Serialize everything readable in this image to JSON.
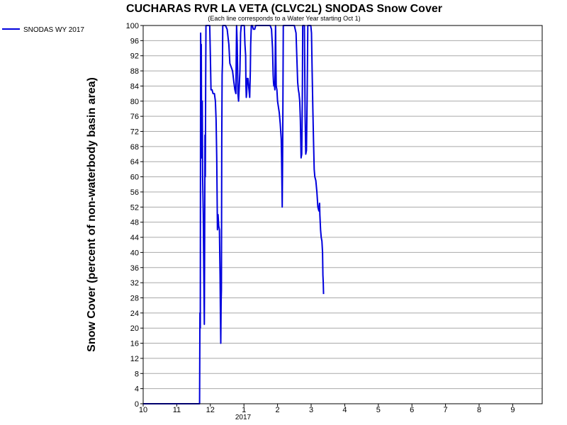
{
  "chart_data": {
    "type": "line",
    "title": "CUCHARAS RVR LA VETA (CLVC2L) SNODAS Snow Cover",
    "subtitle": "(Each line corresponds to a Water Year starting Oct 1)",
    "ylabel": "Snow Cover (percent of non-waterbody basin area)",
    "xlabel": "",
    "ylim": [
      0,
      100
    ],
    "y_ticks": [
      0,
      4,
      8,
      12,
      16,
      20,
      24,
      28,
      32,
      36,
      40,
      44,
      48,
      52,
      56,
      60,
      64,
      68,
      72,
      76,
      80,
      84,
      88,
      92,
      96,
      100
    ],
    "xlim": [
      0,
      12
    ],
    "x_ticks": [
      {
        "label": "10",
        "x": 0
      },
      {
        "label": "11",
        "x": 1
      },
      {
        "label": "12",
        "x": 2
      },
      {
        "label": "1",
        "x": 3
      },
      {
        "label": "2",
        "x": 4
      },
      {
        "label": "3",
        "x": 5
      },
      {
        "label": "4",
        "x": 6
      },
      {
        "label": "5",
        "x": 7
      },
      {
        "label": "6",
        "x": 8
      },
      {
        "label": "7",
        "x": 9
      },
      {
        "label": "8",
        "x": 10
      },
      {
        "label": "9",
        "x": 11
      }
    ],
    "year_label": "2017",
    "grid": true,
    "legend_position": "top-left",
    "series": [
      {
        "name": "SNODAS WY 2017",
        "color": "#0000dd",
        "points": [
          [
            0.0,
            0
          ],
          [
            1.68,
            0
          ],
          [
            1.69,
            24
          ],
          [
            1.7,
            20
          ],
          [
            1.71,
            98
          ],
          [
            1.72,
            88
          ],
          [
            1.73,
            95
          ],
          [
            1.74,
            65
          ],
          [
            1.75,
            75
          ],
          [
            1.76,
            80
          ],
          [
            1.77,
            60
          ],
          [
            1.79,
            50
          ],
          [
            1.8,
            40
          ],
          [
            1.81,
            30
          ],
          [
            1.82,
            21
          ],
          [
            1.83,
            40
          ],
          [
            1.84,
            71
          ],
          [
            1.85,
            60
          ],
          [
            1.86,
            85
          ],
          [
            1.87,
            100
          ],
          [
            1.88,
            100
          ],
          [
            1.9,
            100
          ],
          [
            1.93,
            100
          ],
          [
            1.96,
            100
          ],
          [
            1.98,
            100
          ],
          [
            2.0,
            92
          ],
          [
            2.02,
            83
          ],
          [
            2.05,
            83
          ],
          [
            2.08,
            82
          ],
          [
            2.12,
            82
          ],
          [
            2.15,
            80
          ],
          [
            2.17,
            75
          ],
          [
            2.19,
            65
          ],
          [
            2.21,
            46
          ],
          [
            2.22,
            50
          ],
          [
            2.23,
            50
          ],
          [
            2.25,
            47
          ],
          [
            2.27,
            46
          ],
          [
            2.29,
            34
          ],
          [
            2.3,
            24
          ],
          [
            2.31,
            16
          ],
          [
            2.32,
            27
          ],
          [
            2.33,
            30
          ],
          [
            2.34,
            70
          ],
          [
            2.35,
            87
          ],
          [
            2.36,
            90
          ],
          [
            2.37,
            100
          ],
          [
            2.4,
            100
          ],
          [
            2.45,
            100
          ],
          [
            2.5,
            99
          ],
          [
            2.55,
            95
          ],
          [
            2.58,
            90
          ],
          [
            2.62,
            89
          ],
          [
            2.66,
            88
          ],
          [
            2.7,
            85
          ],
          [
            2.73,
            83
          ],
          [
            2.76,
            82
          ],
          [
            2.78,
            100
          ],
          [
            2.8,
            95
          ],
          [
            2.82,
            82
          ],
          [
            2.84,
            80
          ],
          [
            2.86,
            84
          ],
          [
            2.88,
            88
          ],
          [
            2.9,
            98
          ],
          [
            2.92,
            100
          ],
          [
            2.95,
            100
          ],
          [
            2.97,
            100
          ],
          [
            2.99,
            100
          ],
          [
            3.01,
            100
          ],
          [
            3.03,
            95
          ],
          [
            3.05,
            92
          ],
          [
            3.06,
            84
          ],
          [
            3.07,
            81
          ],
          [
            3.08,
            82
          ],
          [
            3.1,
            86
          ],
          [
            3.12,
            86
          ],
          [
            3.14,
            84
          ],
          [
            3.16,
            82
          ],
          [
            3.17,
            81
          ],
          [
            3.18,
            84
          ],
          [
            3.19,
            88
          ],
          [
            3.2,
            95
          ],
          [
            3.22,
            100
          ],
          [
            3.25,
            100
          ],
          [
            3.28,
            99
          ],
          [
            3.32,
            99
          ],
          [
            3.35,
            100
          ],
          [
            3.4,
            100
          ],
          [
            3.5,
            100
          ],
          [
            3.6,
            100
          ],
          [
            3.7,
            100
          ],
          [
            3.78,
            100
          ],
          [
            3.82,
            99
          ],
          [
            3.85,
            94
          ],
          [
            3.87,
            87
          ],
          [
            3.88,
            85
          ],
          [
            3.89,
            84
          ],
          [
            3.9,
            85
          ],
          [
            3.92,
            83
          ],
          [
            3.94,
            100
          ],
          [
            3.95,
            92
          ],
          [
            3.96,
            84
          ],
          [
            3.98,
            83
          ],
          [
            4.0,
            80
          ],
          [
            4.05,
            77
          ],
          [
            4.08,
            74
          ],
          [
            4.11,
            70
          ],
          [
            4.12,
            65
          ],
          [
            4.13,
            58
          ],
          [
            4.14,
            52
          ],
          [
            4.15,
            64
          ],
          [
            4.16,
            80
          ],
          [
            4.17,
            100
          ],
          [
            4.2,
            100
          ],
          [
            4.3,
            100
          ],
          [
            4.4,
            100
          ],
          [
            4.5,
            100
          ],
          [
            4.55,
            98
          ],
          [
            4.58,
            90
          ],
          [
            4.6,
            85
          ],
          [
            4.62,
            83
          ],
          [
            4.64,
            82
          ],
          [
            4.66,
            80
          ],
          [
            4.68,
            75
          ],
          [
            4.7,
            65
          ],
          [
            4.72,
            66
          ],
          [
            4.73,
            73
          ],
          [
            4.74,
            85
          ],
          [
            4.75,
            100
          ],
          [
            4.77,
            100
          ],
          [
            4.8,
            100
          ],
          [
            4.82,
            76
          ],
          [
            4.84,
            66
          ],
          [
            4.86,
            67
          ],
          [
            4.88,
            80
          ],
          [
            4.9,
            100
          ],
          [
            4.93,
            100
          ],
          [
            4.97,
            100
          ],
          [
            4.99,
            100
          ],
          [
            5.01,
            98
          ],
          [
            5.03,
            88
          ],
          [
            5.05,
            78
          ],
          [
            5.07,
            70
          ],
          [
            5.09,
            62
          ],
          [
            5.11,
            60
          ],
          [
            5.14,
            59
          ],
          [
            5.17,
            56
          ],
          [
            5.2,
            52
          ],
          [
            5.23,
            51
          ],
          [
            5.25,
            53
          ],
          [
            5.26,
            50
          ],
          [
            5.28,
            46
          ],
          [
            5.3,
            44
          ],
          [
            5.32,
            43
          ],
          [
            5.34,
            40
          ],
          [
            5.35,
            34
          ],
          [
            5.36,
            32
          ],
          [
            5.37,
            29
          ]
        ]
      }
    ]
  }
}
